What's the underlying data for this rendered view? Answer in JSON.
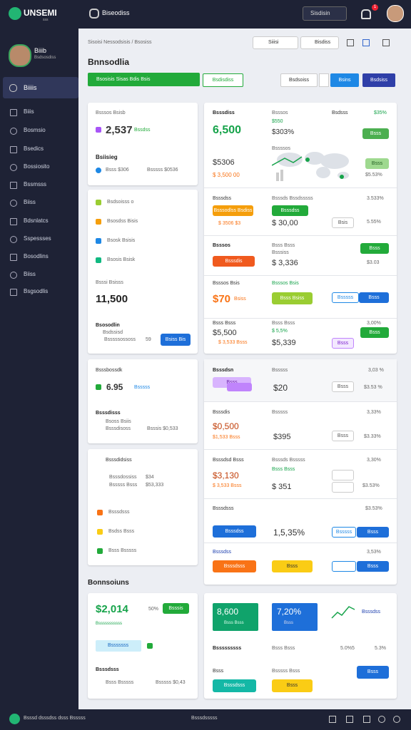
{
  "topbar": {
    "brand": "UNSEMI",
    "brand_sub": "sss",
    "page": "Biseodiss",
    "button": "Sisdisin",
    "badge": "1"
  },
  "sidebar": {
    "user_name": "Biiib",
    "user_role": "Bsdsosdiss",
    "active": "Biiiis",
    "items": [
      "Biiis",
      "Bosmsio",
      "Bsedics",
      "Bossiosito",
      "Bssmsss",
      "Biiss",
      "Bdsnlatcs",
      "Sspessses",
      "Bosodlins",
      "Biiss",
      "Bsgsodlis"
    ]
  },
  "header": {
    "breadcrumb": "Sisoisi Nessodsisis / Bsosiss",
    "search": "Siiisi",
    "filter": "Bisdiss",
    "title": "Bnnsodlia",
    "primary": "Bsosisis Sisas Bdis Bsis",
    "secondary": "Bsdisdiss",
    "action_1": "Bsdsoiss",
    "action_2": "Bsins",
    "action_3": "Bsdsiss"
  },
  "card1": [
    "Bsssos Bsisb",
    "2,537",
    "Bssdss",
    "Bsiisieg",
    "Bsss $306",
    "Bsssss $0536"
  ],
  "card2": [
    "Bsdsoisss o",
    "Bsosdss Bisis",
    "Bsosk Bsisis",
    "Bsosis Bsisk",
    "Bsssi Bsisss",
    "11,500",
    "Bsosodlin",
    "Bsdssisd",
    "Bsssssossoss",
    "59",
    "Bsiss Bis"
  ],
  "card3": [
    "Bsssbossdk",
    "6.95",
    "Bsssss",
    "Bsssdisss",
    "Bsoss Bsiis",
    "Bsssdisoss",
    "Bsssis $0,533"
  ],
  "card4": [
    "Bsssdidsiss",
    "Bsssdossiss",
    "$34",
    "Bsssss Bsss",
    "$53,333",
    "Bsssdsss",
    "Bsdss Bsss",
    "Bsss Bsssss"
  ],
  "section": "Bonnsoiuns",
  "card5": [
    "$2,014",
    "50%",
    "Bsssis",
    "Bsssssssssss",
    "Bsssssss",
    "Bsssdsss",
    "Bsss Bsssss",
    "Bsssss $0,43"
  ],
  "panel1": [
    [
      "Bsssdiss",
      "6,500",
      "$5306",
      "$ 3,500 00",
      "Bsssos",
      "$550",
      "$303%",
      "Bssssos",
      "Bsdsss",
      "$35%",
      "Bsss",
      "Bsss",
      "$5.53%"
    ],
    [
      "Bsssdss",
      "Bsssodlss Bsdiss",
      "$ 3506 $3",
      "Bsssds Bssdsssss",
      "Bsssdss",
      "$ 30,00",
      "3.533%",
      "Bsis",
      "5.55%"
    ],
    [
      "Bsssos",
      "Bsssdis",
      "Bsss Bsss",
      "Bsssiss",
      "$ 3,336",
      "Bsss",
      "$3.03"
    ],
    [
      "Bsssos Bsis",
      "$70",
      "Bsiss",
      "Bsssos Bsis",
      "Bsss Bsiss",
      "Bsssss",
      "Bsss"
    ],
    [
      "Bsss Bsss",
      "$5,500",
      "$ 3,533 Bsss",
      "Bsss Bsss",
      "$ 5,5%",
      "$5,339",
      "3,00%",
      "Bsss",
      "Bsss"
    ]
  ],
  "panel2": [
    [
      "Bsssdsn",
      "Bsss",
      "Bsssss",
      "$20",
      "3,03 %",
      "Bsss",
      "$3.53 %"
    ],
    [
      "Bsssdis",
      "$0,500",
      "$1,533 Bsss",
      "Bsssss",
      "$395",
      "3,33%",
      "Bsss",
      "$3.33%"
    ],
    [
      "Bsssdsd Bsss",
      "$3,130",
      "$ 3,533 Bsss",
      "Bsssds Bsssss",
      "Bsss Bsss",
      "$ 351",
      "3,30%",
      "$3.53%"
    ],
    [
      "Bsssdsss",
      "Bsssdss",
      "1,5,35%",
      "Bsssss",
      "Bsss",
      "$3.53%"
    ],
    [
      "Bsssdss",
      "Bsssdsss",
      "Bsss",
      "3,53%",
      "Bsss"
    ]
  ],
  "panel3": [
    "8,600",
    "Bsss Bsss",
    "7,20%",
    "Bsss",
    "Bsssdss",
    "Bsssssssss",
    "Bsss Bsss",
    "5.0%5",
    "5.3%",
    "Bsss",
    "Bsssss Bsss",
    "Bsss",
    "Bsssdsss",
    "Bsss"
  ],
  "footer": {
    "left": "Bsssd dsssdss dsss Bsssss",
    "center": "Bsssdsssss"
  }
}
